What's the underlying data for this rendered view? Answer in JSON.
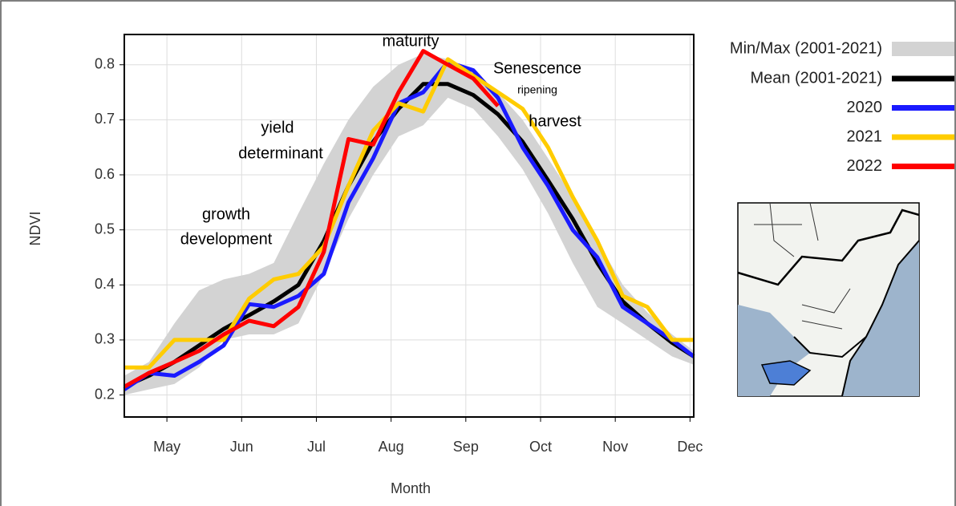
{
  "chart_data": {
    "type": "line",
    "y_label": "NDVI",
    "x_label": "Month",
    "x": [
      4.43,
      4.76,
      5.1,
      5.43,
      5.76,
      6.1,
      6.43,
      6.76,
      7.1,
      7.43,
      7.76,
      8.1,
      8.43,
      8.76,
      9.1,
      9.43,
      9.76,
      10.1,
      10.43,
      10.76,
      11.1,
      11.43,
      11.76,
      12.05
    ],
    "xlim": [
      4.43,
      12.05
    ],
    "xticks": [
      {
        "value": 5,
        "label": "May"
      },
      {
        "value": 6,
        "label": "Jun"
      },
      {
        "value": 7,
        "label": "Jul"
      },
      {
        "value": 8,
        "label": "Aug"
      },
      {
        "value": 9,
        "label": "Sep"
      },
      {
        "value": 10,
        "label": "Oct"
      },
      {
        "value": 11,
        "label": "Nov"
      },
      {
        "value": 12,
        "label": "Dec"
      }
    ],
    "ylim": [
      0.16,
      0.855
    ],
    "yticks": [
      0.2,
      0.3,
      0.4,
      0.5,
      0.6,
      0.7,
      0.8
    ],
    "grid": true,
    "band": {
      "name": "Min/Max (2001-2021)",
      "color": "#d3d3d3",
      "max": [
        0.235,
        0.26,
        0.33,
        0.39,
        0.41,
        0.42,
        0.44,
        0.53,
        0.62,
        0.7,
        0.76,
        0.8,
        0.82,
        0.81,
        0.79,
        0.75,
        0.7,
        0.63,
        0.56,
        0.48,
        0.4,
        0.35,
        0.31,
        0.28
      ],
      "min": [
        0.2,
        0.21,
        0.22,
        0.25,
        0.3,
        0.31,
        0.31,
        0.33,
        0.42,
        0.52,
        0.6,
        0.67,
        0.69,
        0.74,
        0.72,
        0.67,
        0.61,
        0.53,
        0.44,
        0.36,
        0.33,
        0.3,
        0.27,
        0.255
      ]
    },
    "series": [
      {
        "name": "Mean (2001-2021)",
        "color": "#000000",
        "values": [
          0.215,
          0.235,
          0.26,
          0.29,
          0.32,
          0.345,
          0.37,
          0.4,
          0.48,
          0.58,
          0.66,
          0.72,
          0.765,
          0.765,
          0.745,
          0.71,
          0.66,
          0.59,
          0.52,
          0.44,
          0.37,
          0.33,
          0.295,
          0.27
        ]
      },
      {
        "name": "2020",
        "color": "#1a1aff",
        "values": [
          0.21,
          0.24,
          0.235,
          0.26,
          0.29,
          0.365,
          0.36,
          0.38,
          0.42,
          0.55,
          0.63,
          0.73,
          0.75,
          0.805,
          0.79,
          0.74,
          0.65,
          0.58,
          0.5,
          0.45,
          0.36,
          0.33,
          0.3,
          0.27
        ]
      },
      {
        "name": "2021",
        "color": "#ffcc00",
        "values": [
          0.25,
          0.25,
          0.3,
          0.3,
          0.3,
          0.375,
          0.41,
          0.42,
          0.47,
          0.58,
          0.68,
          0.73,
          0.715,
          0.81,
          0.78,
          0.75,
          0.72,
          0.65,
          0.56,
          0.48,
          0.38,
          0.36,
          0.3,
          0.3
        ]
      },
      {
        "name": "2022",
        "color": "#ff0000",
        "values": [
          0.215,
          0.24,
          0.26,
          0.28,
          0.31,
          0.335,
          0.325,
          0.36,
          0.46,
          0.665,
          0.655,
          0.75,
          0.825,
          0.8,
          0.775,
          0.725,
          null,
          null,
          null,
          null,
          null,
          null,
          null,
          null
        ]
      }
    ],
    "annotations": [
      "maturity",
      "Senescence",
      "ripening",
      "harvest",
      "yield",
      "determinant",
      "growth",
      "development"
    ]
  }
}
